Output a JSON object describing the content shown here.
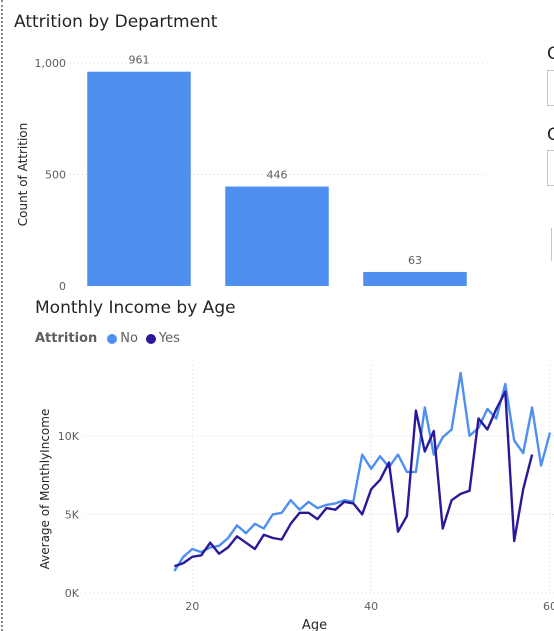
{
  "colors": {
    "no": "#4f8ff0",
    "yes": "#2a1a9a",
    "bar": "#4f8ff0",
    "grid": "#d0d0d0",
    "tick": "#605e5c"
  },
  "chart_data": [
    {
      "type": "bar",
      "title": "Attrition by Department",
      "ylabel": "Count of Attrition",
      "xlabel": "",
      "categories": [
        "",
        "",
        ""
      ],
      "values": [
        961,
        446,
        63
      ],
      "data_labels": [
        "961",
        "446",
        "63"
      ],
      "ylim": [
        0,
        1000
      ],
      "yticks": [
        0,
        500,
        1000
      ],
      "ytick_labels": [
        "0",
        "500",
        "1,000"
      ],
      "grid": true
    },
    {
      "type": "line",
      "title": "Monthly Income by Age",
      "xlabel": "Age",
      "ylabel": "Average of MonthlyIncome",
      "legend_title": "Attrition",
      "legend_position": "top-left",
      "xlim": [
        8,
        60
      ],
      "ylim": [
        0,
        14500
      ],
      "xticks": [
        20,
        40,
        60
      ],
      "xtick_labels": [
        "20",
        "40",
        "60"
      ],
      "yticks": [
        0,
        5000,
        10000
      ],
      "ytick_labels": [
        "0K",
        "5K",
        "10K"
      ],
      "grid": true,
      "series": [
        {
          "name": "No",
          "x": [
            18,
            19,
            20,
            21,
            22,
            23,
            24,
            25,
            26,
            27,
            28,
            29,
            30,
            31,
            32,
            33,
            34,
            35,
            36,
            37,
            38,
            39,
            40,
            41,
            42,
            43,
            44,
            45,
            46,
            47,
            48,
            49,
            50,
            51,
            52,
            53,
            54,
            55,
            56,
            57,
            58,
            59,
            60
          ],
          "y": [
            1400,
            2300,
            2800,
            2600,
            2900,
            3000,
            3500,
            4300,
            3800,
            4400,
            4100,
            5000,
            5100,
            5900,
            5300,
            5800,
            5400,
            5600,
            5700,
            5900,
            5800,
            8800,
            7900,
            8700,
            8000,
            8800,
            7700,
            7700,
            11800,
            8800,
            9900,
            10400,
            14000,
            10000,
            10500,
            11700,
            11100,
            13300,
            9700,
            8900,
            11800,
            8100,
            10200
          ]
        },
        {
          "name": "Yes",
          "x": [
            18,
            19,
            20,
            21,
            22,
            23,
            24,
            25,
            26,
            27,
            28,
            29,
            30,
            31,
            32,
            33,
            34,
            35,
            36,
            37,
            38,
            39,
            40,
            41,
            42,
            43,
            44,
            45,
            46,
            47,
            48,
            49,
            50,
            51,
            52,
            53,
            54,
            55,
            56,
            57,
            58
          ],
          "y": [
            1700,
            1900,
            2300,
            2400,
            3200,
            2500,
            2900,
            3600,
            3200,
            2800,
            3700,
            3500,
            3400,
            4400,
            5100,
            5100,
            4700,
            5400,
            5300,
            5800,
            5700,
            5000,
            6600,
            7200,
            8300,
            3900,
            4900,
            11600,
            9000,
            10300,
            4100,
            5900,
            6300,
            6500,
            11100,
            10400,
            11700,
            12800,
            3300,
            6600,
            8800
          ]
        }
      ]
    }
  ],
  "side_panel": {
    "labels": [
      "G",
      "C"
    ]
  }
}
